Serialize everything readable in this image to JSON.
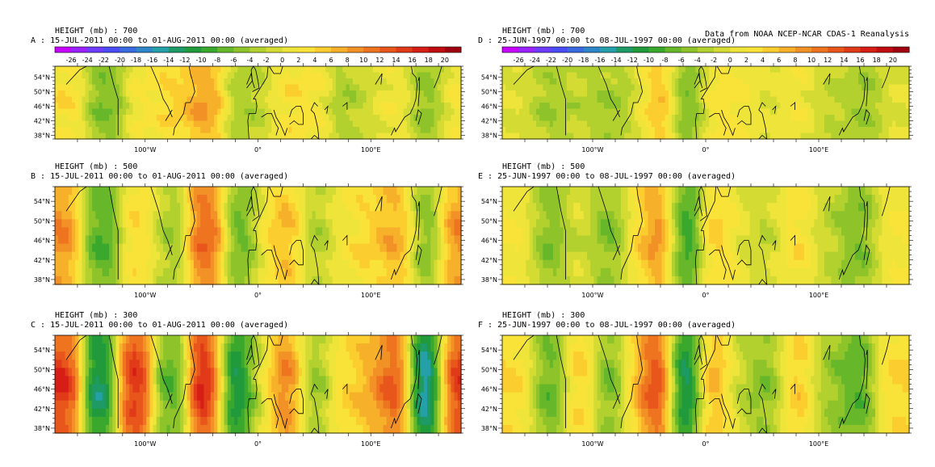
{
  "source_note": "Data from NOAA NCEP-NCAR CDAS-1 Reanalysis",
  "colorbar": {
    "levels": [
      "-26",
      "-24",
      "-22",
      "-20",
      "-18",
      "-16",
      "-14",
      "-12",
      "-10",
      "-8",
      "-6",
      "-4",
      "-2",
      "0",
      "2",
      "4",
      "6",
      "8",
      "10",
      "12",
      "14",
      "16",
      "18",
      "20"
    ],
    "colors": [
      "#c800ff",
      "#9a22ff",
      "#6e3cff",
      "#4a4cf5",
      "#3a6ae0",
      "#2e86c8",
      "#25a0a8",
      "#1e9a66",
      "#219a3c",
      "#3aa82c",
      "#66b82a",
      "#8ec42a",
      "#b2d02e",
      "#d4dc34",
      "#eee43a",
      "#fae338",
      "#fbcd2e",
      "#f6b02a",
      "#f29226",
      "#ee7420",
      "#e8561c",
      "#e03a18",
      "#d61e16",
      "#c00c10",
      "#a00010"
    ]
  },
  "axes": {
    "lon_ticks": [
      "100°W",
      "0°",
      "100°E"
    ],
    "lat_ticks": [
      "38°N",
      "42°N",
      "46°N",
      "50°N",
      "54°N"
    ]
  },
  "chart_data": [
    {
      "id": "A",
      "type": "heatmap",
      "variable_line": "HEIGHT (mb) : 700",
      "title": "A : 15-JUL-2011 00:00 to 01-AUG-2011 00:00 (averaged)",
      "lon_range": [
        -180,
        180
      ],
      "lat_range": [
        37,
        57
      ],
      "show_colorbar": true,
      "anomaly_peaks": [
        {
          "lon": -168,
          "value": 4
        },
        {
          "lon": -138,
          "value": -6
        },
        {
          "lon": -100,
          "value": 2
        },
        {
          "lon": -75,
          "value": 4
        },
        {
          "lon": -45,
          "value": 8
        },
        {
          "lon": -15,
          "value": -4
        },
        {
          "lon": 5,
          "value": -2
        },
        {
          "lon": 25,
          "value": 4
        },
        {
          "lon": 50,
          "value": 2
        },
        {
          "lon": 80,
          "value": -4
        },
        {
          "lon": 100,
          "value": 0
        },
        {
          "lon": 125,
          "value": 2
        },
        {
          "lon": 150,
          "value": -6
        },
        {
          "lon": 175,
          "value": 2
        }
      ]
    },
    {
      "id": "D",
      "type": "heatmap",
      "variable_line": "HEIGHT (mb) : 700",
      "title": "D : 25-JUN-1997 00:00 to 08-JUL-1997 00:00 (averaged)",
      "lon_range": [
        -180,
        180
      ],
      "lat_range": [
        37,
        57
      ],
      "show_colorbar": true,
      "anomaly_peaks": [
        {
          "lon": -165,
          "value": 0
        },
        {
          "lon": -140,
          "value": -4
        },
        {
          "lon": -110,
          "value": -2
        },
        {
          "lon": -85,
          "value": -4
        },
        {
          "lon": -62,
          "value": -2
        },
        {
          "lon": -42,
          "value": 8
        },
        {
          "lon": -15,
          "value": -8
        },
        {
          "lon": 8,
          "value": 4
        },
        {
          "lon": 30,
          "value": 2
        },
        {
          "lon": 55,
          "value": 0
        },
        {
          "lon": 80,
          "value": 2
        },
        {
          "lon": 110,
          "value": -2
        },
        {
          "lon": 140,
          "value": -4
        },
        {
          "lon": 170,
          "value": 0
        }
      ]
    },
    {
      "id": "B",
      "type": "heatmap",
      "variable_line": "HEIGHT (mb) : 500",
      "title": "B : 15-JUL-2011 00:00 to 01-AUG-2011 00:00 (averaged)",
      "lon_range": [
        -180,
        180
      ],
      "lat_range": [
        37,
        57
      ],
      "show_colorbar": false,
      "anomaly_peaks": [
        {
          "lon": -172,
          "value": 8
        },
        {
          "lon": -140,
          "value": -8
        },
        {
          "lon": -105,
          "value": 4
        },
        {
          "lon": -78,
          "value": -4
        },
        {
          "lon": -45,
          "value": 12
        },
        {
          "lon": -15,
          "value": -8
        },
        {
          "lon": 8,
          "value": 2
        },
        {
          "lon": 25,
          "value": 8
        },
        {
          "lon": 50,
          "value": -4
        },
        {
          "lon": 75,
          "value": 2
        },
        {
          "lon": 100,
          "value": 4
        },
        {
          "lon": 125,
          "value": 8
        },
        {
          "lon": 150,
          "value": -8
        },
        {
          "lon": 175,
          "value": 10
        }
      ]
    },
    {
      "id": "E",
      "type": "heatmap",
      "variable_line": "HEIGHT (mb) : 500",
      "title": "E : 25-JUN-1997 00:00 to 08-JUL-1997 00:00 (averaged)",
      "lon_range": [
        -180,
        180
      ],
      "lat_range": [
        37,
        57
      ],
      "show_colorbar": false,
      "anomaly_peaks": [
        {
          "lon": -165,
          "value": 2
        },
        {
          "lon": -138,
          "value": -6
        },
        {
          "lon": -112,
          "value": 0
        },
        {
          "lon": -85,
          "value": -6
        },
        {
          "lon": -60,
          "value": 2
        },
        {
          "lon": -42,
          "value": 12
        },
        {
          "lon": -18,
          "value": -12
        },
        {
          "lon": 8,
          "value": 6
        },
        {
          "lon": 30,
          "value": 0
        },
        {
          "lon": 55,
          "value": -2
        },
        {
          "lon": 80,
          "value": 4
        },
        {
          "lon": 108,
          "value": -2
        },
        {
          "lon": 135,
          "value": -6
        },
        {
          "lon": 165,
          "value": 2
        }
      ]
    },
    {
      "id": "C",
      "type": "heatmap",
      "variable_line": "HEIGHT (mb) : 300",
      "title": "C : 15-JUL-2011 00:00 to 01-AUG-2011 00:00 (averaged)",
      "lon_range": [
        -180,
        180
      ],
      "lat_range": [
        37,
        57
      ],
      "show_colorbar": false,
      "anomaly_peaks": [
        {
          "lon": -172,
          "value": 14
        },
        {
          "lon": -140,
          "value": -14
        },
        {
          "lon": -110,
          "value": 16
        },
        {
          "lon": -78,
          "value": -8
        },
        {
          "lon": -45,
          "value": 18
        },
        {
          "lon": -20,
          "value": -16
        },
        {
          "lon": 2,
          "value": 0
        },
        {
          "lon": 25,
          "value": 12
        },
        {
          "lon": 50,
          "value": -6
        },
        {
          "lon": 75,
          "value": 4
        },
        {
          "lon": 100,
          "value": 6
        },
        {
          "lon": 120,
          "value": 14
        },
        {
          "lon": 150,
          "value": -18
        },
        {
          "lon": 176,
          "value": 16
        }
      ]
    },
    {
      "id": "F",
      "type": "heatmap",
      "variable_line": "HEIGHT (mb) : 300",
      "title": "F : 25-JUN-1997 00:00 to 08-JUL-1997 00:00 (averaged)",
      "lon_range": [
        -180,
        180
      ],
      "lat_range": [
        37,
        57
      ],
      "show_colorbar": false,
      "anomaly_peaks": [
        {
          "lon": -165,
          "value": 4
        },
        {
          "lon": -138,
          "value": -8
        },
        {
          "lon": -110,
          "value": 6
        },
        {
          "lon": -85,
          "value": -8
        },
        {
          "lon": -62,
          "value": 4
        },
        {
          "lon": -43,
          "value": 18
        },
        {
          "lon": -18,
          "value": -18
        },
        {
          "lon": 5,
          "value": 10
        },
        {
          "lon": 28,
          "value": -2
        },
        {
          "lon": 55,
          "value": -6
        },
        {
          "lon": 80,
          "value": 6
        },
        {
          "lon": 108,
          "value": -4
        },
        {
          "lon": 135,
          "value": -8
        },
        {
          "lon": 165,
          "value": 4
        }
      ]
    }
  ]
}
